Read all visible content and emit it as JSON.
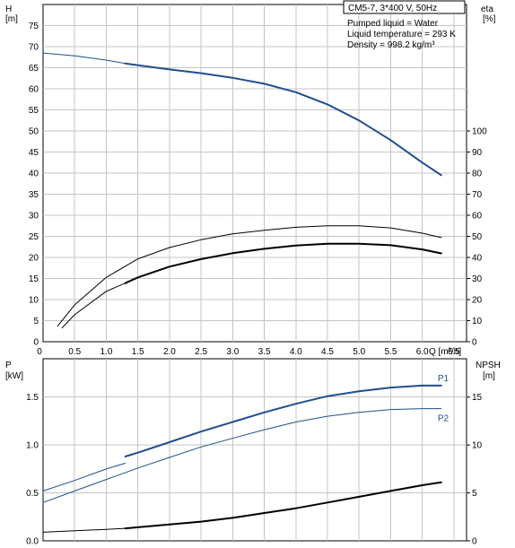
{
  "title_box": "CM5-7, 3*400 V, 50Hz",
  "info": {
    "line1": "Pumped liquid = Water",
    "line2": "Liquid temperature = 293 K",
    "line3": "Density = 998.2 kg/m³"
  },
  "colors": {
    "blue": "#1f4e8c",
    "black": "#000000",
    "grid": "#c4c4c4"
  },
  "chart_data": [
    {
      "type": "line",
      "panel": "top",
      "y_label_left": [
        "H",
        "[m]"
      ],
      "y_label_right": [
        "eta",
        "[%]"
      ],
      "x_label": "Q [m³/h]",
      "xlim": [
        0,
        6.7
      ],
      "ylim_left": [
        0,
        80
      ],
      "ylim_right": [
        0,
        160
      ],
      "x_ticks": [
        "0",
        "0.5",
        "1.0",
        "1.5",
        "2.0",
        "2.5",
        "3.0",
        "3.5",
        "4.0",
        "4.5",
        "5.0",
        "5.5",
        "6.0",
        "6.5"
      ],
      "left_ticks": [
        "0",
        "5",
        "10",
        "15",
        "20",
        "25",
        "30",
        "35",
        "40",
        "45",
        "50",
        "55",
        "60",
        "65",
        "70",
        "75"
      ],
      "right_ticks": [
        "0",
        "10",
        "20",
        "30",
        "40",
        "50",
        "60",
        "70",
        "80",
        "90",
        "100"
      ],
      "series": [
        {
          "axis": "left",
          "color": "#1f4e8c",
          "width": 1,
          "points": [
            [
              0,
              68.5
            ],
            [
              0.5,
              67.8
            ],
            [
              1.0,
              66.8
            ],
            [
              1.3,
              66.0
            ]
          ]
        },
        {
          "axis": "left",
          "color": "#1f4e8c",
          "width": 2,
          "points": [
            [
              1.3,
              66.0
            ],
            [
              1.5,
              65.6
            ],
            [
              2.0,
              64.6
            ],
            [
              2.5,
              63.7
            ],
            [
              3.0,
              62.6
            ],
            [
              3.5,
              61.2
            ],
            [
              4.0,
              59.2
            ],
            [
              4.5,
              56.3
            ],
            [
              5.0,
              52.5
            ],
            [
              5.5,
              47.8
            ],
            [
              6.0,
              42.5
            ],
            [
              6.3,
              39.5
            ]
          ]
        },
        {
          "axis": "right",
          "color": "#000000",
          "width": 1,
          "points": [
            [
              0.23,
              7.4
            ],
            [
              0.5,
              17.5
            ],
            [
              1.0,
              30.5
            ],
            [
              1.5,
              39.3
            ],
            [
              2.0,
              44.7
            ],
            [
              2.5,
              48.4
            ],
            [
              3.0,
              51.2
            ],
            [
              3.5,
              52.9
            ],
            [
              4.0,
              54.3
            ],
            [
              4.5,
              55.0
            ],
            [
              5.0,
              55.0
            ],
            [
              5.5,
              54.0
            ],
            [
              6.0,
              51.5
            ],
            [
              6.3,
              49.4
            ]
          ]
        },
        {
          "axis": "right",
          "color": "#000000",
          "width": 1,
          "points": [
            [
              0.3,
              6.5
            ],
            [
              0.5,
              12.8
            ],
            [
              1.0,
              23.9
            ],
            [
              1.3,
              27.8
            ]
          ]
        },
        {
          "axis": "right",
          "color": "#000000",
          "width": 2,
          "points": [
            [
              1.3,
              27.8
            ],
            [
              1.5,
              30.5
            ],
            [
              2.0,
              35.6
            ],
            [
              2.5,
              39.2
            ],
            [
              3.0,
              42.0
            ],
            [
              3.5,
              44.1
            ],
            [
              4.0,
              45.6
            ],
            [
              4.5,
              46.5
            ],
            [
              5.0,
              46.5
            ],
            [
              5.5,
              45.8
            ],
            [
              6.0,
              43.8
            ],
            [
              6.3,
              41.9
            ]
          ]
        }
      ]
    },
    {
      "type": "line",
      "panel": "bottom",
      "y_label_left": [
        "P",
        "[kW]"
      ],
      "y_label_right": [
        "NPSH",
        "[m]"
      ],
      "xlim": [
        0,
        6.7
      ],
      "ylim_left": [
        0,
        1.9
      ],
      "ylim_right": [
        0,
        19
      ],
      "left_ticks": [
        "0.0",
        "0.5",
        "1.0",
        "1.5"
      ],
      "right_ticks": [
        "0",
        "5",
        "10",
        "15"
      ],
      "series": [
        {
          "axis": "left",
          "color": "#1f4e8c",
          "width": 1,
          "points": [
            [
              0,
              0.52
            ],
            [
              0.5,
              0.63
            ],
            [
              1.0,
              0.75
            ],
            [
              1.3,
              0.81
            ]
          ]
        },
        {
          "axis": "left",
          "color": "#1f4e8c",
          "width": 2,
          "name": "P1",
          "points": [
            [
              1.3,
              0.88
            ],
            [
              1.5,
              0.92
            ],
            [
              2.0,
              1.03
            ],
            [
              2.5,
              1.14
            ],
            [
              3.0,
              1.24
            ],
            [
              3.5,
              1.34
            ],
            [
              4.0,
              1.43
            ],
            [
              4.5,
              1.51
            ],
            [
              5.0,
              1.56
            ],
            [
              5.5,
              1.6
            ],
            [
              6.0,
              1.62
            ],
            [
              6.3,
              1.62
            ]
          ]
        },
        {
          "axis": "left",
          "color": "#1f4e8c",
          "width": 1,
          "name": "P2",
          "points": [
            [
              0,
              0.4
            ],
            [
              0.5,
              0.52
            ],
            [
              1.0,
              0.64
            ],
            [
              1.5,
              0.76
            ],
            [
              2.0,
              0.87
            ],
            [
              2.5,
              0.98
            ],
            [
              3.0,
              1.07
            ],
            [
              3.5,
              1.16
            ],
            [
              4.0,
              1.24
            ],
            [
              4.5,
              1.3
            ],
            [
              5.0,
              1.34
            ],
            [
              5.5,
              1.37
            ],
            [
              6.0,
              1.38
            ],
            [
              6.3,
              1.38
            ]
          ]
        },
        {
          "axis": "right",
          "color": "#000000",
          "width": 1,
          "points": [
            [
              0,
              0.9
            ],
            [
              0.5,
              1.05
            ],
            [
              1.0,
              1.2
            ],
            [
              1.3,
              1.3
            ]
          ]
        },
        {
          "axis": "right",
          "color": "#000000",
          "width": 2,
          "points": [
            [
              1.3,
              1.3
            ],
            [
              2.0,
              1.7
            ],
            [
              2.5,
              2.0
            ],
            [
              3.0,
              2.4
            ],
            [
              3.5,
              2.9
            ],
            [
              4.0,
              3.4
            ],
            [
              4.5,
              4.0
            ],
            [
              5.0,
              4.6
            ],
            [
              5.5,
              5.2
            ],
            [
              6.0,
              5.8
            ],
            [
              6.3,
              6.1
            ]
          ]
        }
      ]
    }
  ]
}
